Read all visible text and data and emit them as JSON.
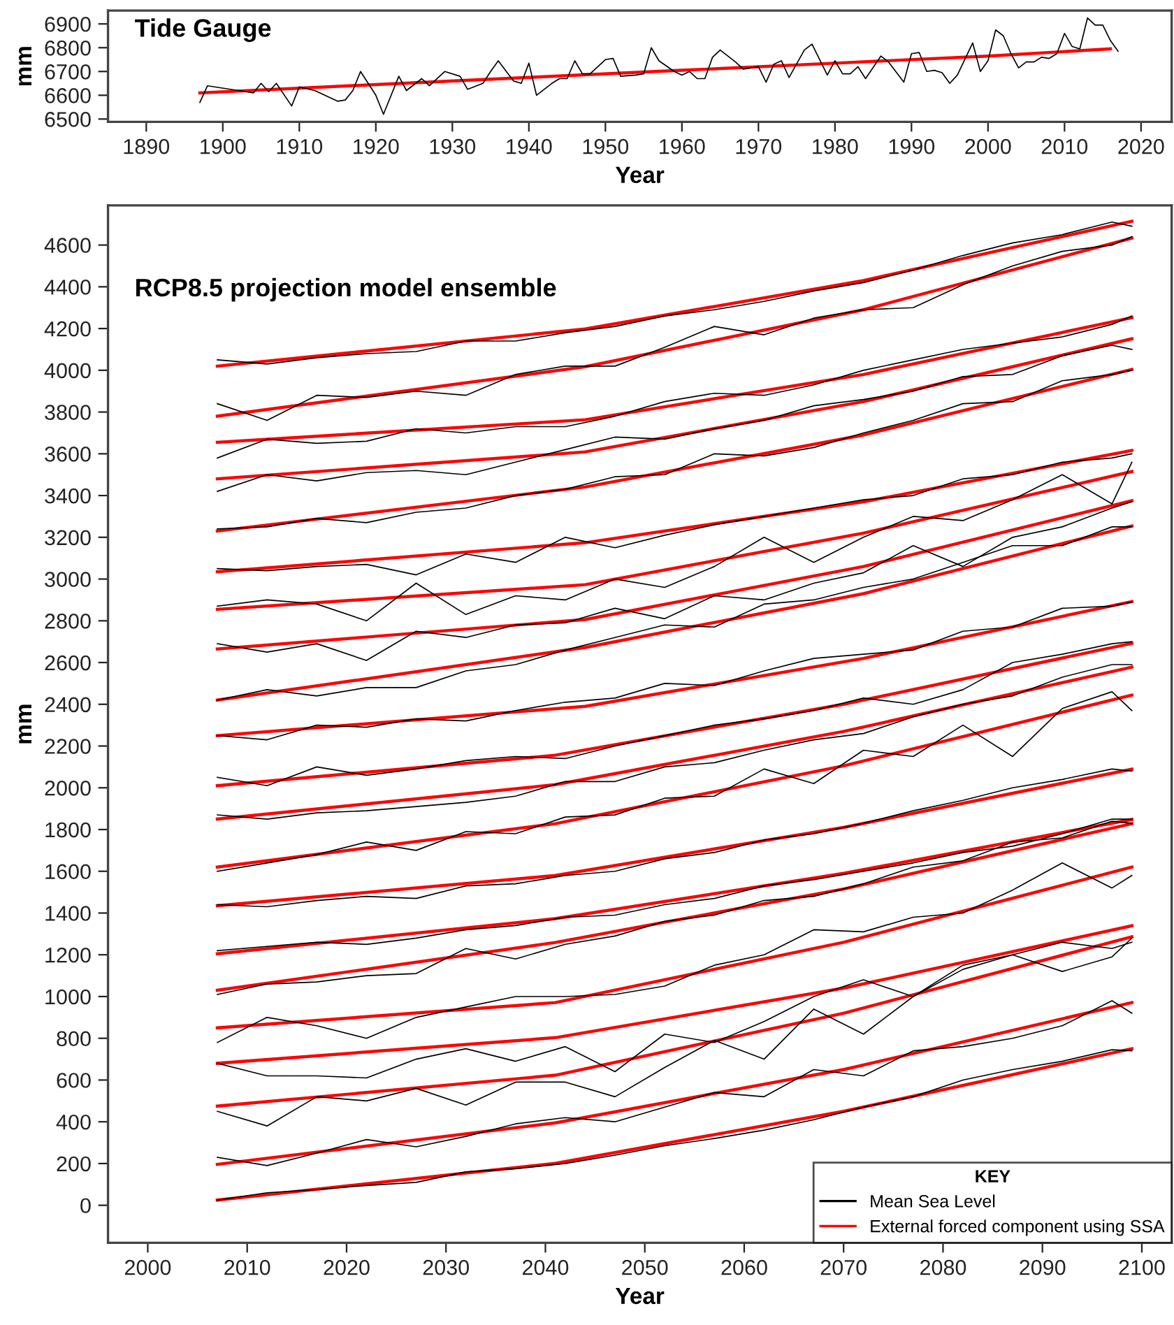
{
  "chart_data": [
    {
      "type": "line",
      "title": "Tide Gauge",
      "xlabel": "Year",
      "ylabel": "mm",
      "xlim": [
        1885,
        2024
      ],
      "ylim": [
        6488,
        6956
      ],
      "xticks": [
        1890,
        1900,
        1910,
        1920,
        1930,
        1940,
        1950,
        1960,
        1970,
        1980,
        1990,
        2000,
        2010,
        2020
      ],
      "yticks": [
        6500,
        6600,
        6700,
        6800,
        6900
      ],
      "grid": false,
      "series": [
        {
          "color": "#000000",
          "x": [
            1897,
            1898,
            1902,
            1904,
            1905,
            1906,
            1907,
            1909,
            1910,
            1912,
            1915,
            1916,
            1917,
            1918,
            1920,
            1921,
            1923,
            1924,
            1926,
            1927,
            1929,
            1931,
            1932,
            1934,
            1935,
            1936,
            1938,
            1939,
            1940,
            1941,
            1943,
            1944,
            1945,
            1946,
            1947,
            1948,
            1950,
            1951,
            1952,
            1954,
            1955,
            1956,
            1957,
            1959,
            1960,
            1961,
            1962,
            1963,
            1964,
            1965,
            1967,
            1968,
            1970,
            1971,
            1972,
            1973,
            1974,
            1976,
            1977,
            1979,
            1980,
            1981,
            1982,
            1983,
            1984,
            1986,
            1987,
            1989,
            1990,
            1991,
            1992,
            1993,
            1994,
            1995,
            1996,
            1998,
            1999,
            2000,
            2001,
            2002,
            2003,
            2004,
            2005,
            2006,
            2007,
            2008,
            2009,
            2010,
            2011,
            2012,
            2013,
            2014,
            2015,
            2016,
            2017
          ],
          "values": [
            6570,
            6640,
            6620,
            6610,
            6650,
            6615,
            6650,
            6555,
            6635,
            6620,
            6575,
            6580,
            6620,
            6700,
            6600,
            6520,
            6680,
            6620,
            6670,
            6640,
            6700,
            6680,
            6625,
            6650,
            6700,
            6745,
            6660,
            6650,
            6735,
            6600,
            6650,
            6670,
            6670,
            6745,
            6690,
            6690,
            6750,
            6755,
            6680,
            6685,
            6690,
            6800,
            6745,
            6700,
            6685,
            6700,
            6670,
            6670,
            6760,
            6790,
            6740,
            6710,
            6720,
            6655,
            6730,
            6745,
            6675,
            6790,
            6815,
            6685,
            6745,
            6690,
            6690,
            6720,
            6670,
            6765,
            6740,
            6655,
            6775,
            6780,
            6700,
            6705,
            6695,
            6650,
            6685,
            6820,
            6700,
            6745,
            6875,
            6850,
            6775,
            6715,
            6740,
            6740,
            6760,
            6755,
            6775,
            6860,
            6805,
            6795,
            6925,
            6895,
            6895,
            6830,
            6785
          ]
        },
        {
          "color": "#ff0000",
          "x": [
            1897,
            1920,
            1940,
            1960,
            1980,
            2000,
            2016
          ],
          "values": [
            6610,
            6645,
            6675,
            6705,
            6735,
            6765,
            6795
          ]
        }
      ]
    },
    {
      "type": "line",
      "title": "RCP8.5 projection model ensemble",
      "xlabel": "Year",
      "ylabel": "mm",
      "xlim": [
        1996,
        2103
      ],
      "ylim": [
        -180,
        4790
      ],
      "xticks": [
        2000,
        2010,
        2020,
        2030,
        2040,
        2050,
        2060,
        2070,
        2080,
        2090,
        2100
      ],
      "yticks": [
        0,
        200,
        400,
        600,
        800,
        1000,
        1200,
        1400,
        1600,
        1800,
        2000,
        2200,
        2400,
        2600,
        2800,
        3000,
        3200,
        3400,
        3600,
        3800,
        4000,
        4200,
        4400,
        4600
      ],
      "grid": false,
      "legend": "bottom right",
      "legend_title": "KEY",
      "x": [
        2007,
        2012,
        2017,
        2022,
        2027,
        2032,
        2037,
        2042,
        2047,
        2052,
        2057,
        2062,
        2067,
        2072,
        2077,
        2082,
        2087,
        2092,
        2097,
        2099
      ],
      "series": [
        {
          "name": "Mean Sea Level",
          "color": "#000000",
          "values": [
            25,
            60,
            75,
            95,
            110,
            160,
            175,
            200,
            240,
            285,
            320,
            360,
            410,
            470,
            520,
            600,
            650,
            690,
            745,
            740
          ]
        },
        {
          "color": "#000000",
          "values": [
            230,
            190,
            250,
            315,
            280,
            330,
            390,
            420,
            400,
            470,
            540,
            520,
            650,
            620,
            740,
            760,
            800,
            860,
            980,
            920
          ]
        },
        {
          "color": "#000000",
          "values": [
            450,
            380,
            520,
            500,
            560,
            480,
            590,
            590,
            520,
            660,
            790,
            700,
            940,
            820,
            1000,
            1130,
            1200,
            1120,
            1190,
            1280
          ]
        },
        {
          "color": "#000000",
          "values": [
            680,
            620,
            620,
            610,
            700,
            750,
            690,
            760,
            640,
            820,
            780,
            880,
            1000,
            1080,
            1000,
            1150,
            1200,
            1260,
            1230,
            1260
          ]
        },
        {
          "color": "#000000",
          "values": [
            780,
            900,
            860,
            800,
            900,
            950,
            1000,
            1000,
            1010,
            1050,
            1150,
            1200,
            1320,
            1310,
            1380,
            1400,
            1510,
            1640,
            1520,
            1580
          ]
        },
        {
          "color": "#000000",
          "values": [
            1010,
            1060,
            1070,
            1100,
            1110,
            1230,
            1180,
            1250,
            1290,
            1360,
            1390,
            1460,
            1480,
            1540,
            1620,
            1650,
            1740,
            1760,
            1840,
            1830
          ]
        },
        {
          "color": "#000000",
          "values": [
            1220,
            1240,
            1260,
            1250,
            1280,
            1320,
            1340,
            1380,
            1390,
            1440,
            1470,
            1530,
            1560,
            1600,
            1640,
            1690,
            1720,
            1780,
            1850,
            1850
          ]
        },
        {
          "color": "#000000",
          "values": [
            1440,
            1430,
            1460,
            1480,
            1470,
            1530,
            1540,
            1580,
            1600,
            1660,
            1690,
            1750,
            1780,
            1830,
            1890,
            1940,
            2000,
            2040,
            2090,
            2080
          ]
        },
        {
          "color": "#000000",
          "values": [
            1600,
            1640,
            1680,
            1740,
            1700,
            1790,
            1780,
            1860,
            1870,
            1950,
            1960,
            2090,
            2020,
            2180,
            2150,
            2300,
            2150,
            2380,
            2460,
            2370
          ]
        },
        {
          "color": "#000000",
          "values": [
            1870,
            1850,
            1880,
            1890,
            1910,
            1930,
            1960,
            2030,
            2030,
            2100,
            2120,
            2180,
            2230,
            2260,
            2340,
            2400,
            2440,
            2530,
            2590,
            2590
          ]
        },
        {
          "color": "#000000",
          "values": [
            2050,
            2010,
            2100,
            2060,
            2090,
            2130,
            2150,
            2140,
            2200,
            2250,
            2300,
            2330,
            2370,
            2430,
            2400,
            2470,
            2600,
            2640,
            2690,
            2700
          ]
        },
        {
          "color": "#000000",
          "values": [
            2250,
            2230,
            2300,
            2290,
            2330,
            2320,
            2370,
            2410,
            2430,
            2500,
            2490,
            2560,
            2620,
            2640,
            2660,
            2750,
            2770,
            2860,
            2870,
            2890
          ]
        },
        {
          "color": "#000000",
          "values": [
            2420,
            2470,
            2440,
            2480,
            2480,
            2560,
            2590,
            2660,
            2720,
            2780,
            2770,
            2880,
            2900,
            2960,
            3000,
            3080,
            3160,
            3160,
            3250,
            3250
          ]
        },
        {
          "color": "#000000",
          "values": [
            2690,
            2650,
            2690,
            2610,
            2750,
            2720,
            2780,
            2790,
            2860,
            2810,
            2920,
            2900,
            2980,
            3030,
            3160,
            3060,
            3200,
            3250,
            3340,
            3370
          ]
        },
        {
          "color": "#000000",
          "values": [
            2870,
            2900,
            2880,
            2800,
            2980,
            2830,
            2920,
            2900,
            3000,
            2960,
            3060,
            3200,
            3080,
            3200,
            3300,
            3280,
            3380,
            3500,
            3360,
            3560
          ]
        },
        {
          "color": "#000000",
          "values": [
            3050,
            3040,
            3060,
            3070,
            3020,
            3120,
            3080,
            3200,
            3150,
            3210,
            3260,
            3300,
            3340,
            3380,
            3400,
            3480,
            3500,
            3560,
            3580,
            3600
          ]
        },
        {
          "color": "#000000",
          "values": [
            3240,
            3250,
            3290,
            3270,
            3320,
            3340,
            3400,
            3430,
            3490,
            3500,
            3600,
            3590,
            3630,
            3700,
            3760,
            3840,
            3850,
            3950,
            3980,
            4000
          ]
        },
        {
          "color": "#000000",
          "values": [
            3420,
            3500,
            3470,
            3510,
            3520,
            3500,
            3560,
            3620,
            3680,
            3670,
            3720,
            3760,
            3830,
            3860,
            3900,
            3970,
            3980,
            4070,
            4120,
            4100
          ]
        },
        {
          "color": "#000000",
          "values": [
            3580,
            3670,
            3650,
            3660,
            3720,
            3700,
            3730,
            3730,
            3780,
            3850,
            3890,
            3880,
            3930,
            4000,
            4050,
            4100,
            4130,
            4160,
            4220,
            4260
          ]
        },
        {
          "color": "#000000",
          "values": [
            3840,
            3760,
            3880,
            3870,
            3900,
            3880,
            3980,
            4020,
            4020,
            4110,
            4210,
            4170,
            4250,
            4290,
            4300,
            4410,
            4500,
            4570,
            4600,
            4640
          ]
        },
        {
          "color": "#000000",
          "values": [
            4050,
            4030,
            4060,
            4080,
            4090,
            4140,
            4140,
            4180,
            4210,
            4260,
            4290,
            4330,
            4380,
            4420,
            4480,
            4550,
            4610,
            4650,
            4710,
            4690
          ]
        },
        {
          "name": "External forced component using SSA",
          "color": "#ff0000",
          "x": [
            2007,
            2041,
            2070,
            2099
          ],
          "values": [
            25,
            201,
            450,
            750
          ]
        },
        {
          "color": "#ff0000",
          "x": [
            2007,
            2041,
            2070,
            2099
          ],
          "values": [
            196,
            395,
            650,
            971
          ]
        },
        {
          "color": "#ff0000",
          "x": [
            2007,
            2041,
            2070,
            2099
          ],
          "values": [
            475,
            623,
            920,
            1286
          ]
        },
        {
          "color": "#ff0000",
          "x": [
            2007,
            2041,
            2070,
            2099
          ],
          "values": [
            680,
            803,
            1040,
            1339
          ]
        },
        {
          "color": "#ff0000",
          "x": [
            2007,
            2041,
            2070,
            2099
          ],
          "values": [
            850,
            971,
            1260,
            1620
          ]
        },
        {
          "color": "#ff0000",
          "x": [
            2007,
            2041,
            2070,
            2099
          ],
          "values": [
            1030,
            1259,
            1515,
            1828
          ]
        },
        {
          "color": "#ff0000",
          "x": [
            2007,
            2041,
            2070,
            2099
          ],
          "values": [
            1205,
            1373,
            1590,
            1848
          ]
        },
        {
          "color": "#ff0000",
          "x": [
            2007,
            2041,
            2070,
            2099
          ],
          "values": [
            1435,
            1580,
            1810,
            2089
          ]
        },
        {
          "color": "#ff0000",
          "x": [
            2007,
            2041,
            2070,
            2099
          ],
          "values": [
            1620,
            1828,
            2105,
            2444
          ]
        },
        {
          "color": "#ff0000",
          "x": [
            2007,
            2041,
            2070,
            2099
          ],
          "values": [
            1850,
            2015,
            2270,
            2578
          ]
        },
        {
          "color": "#ff0000",
          "x": [
            2007,
            2041,
            2070,
            2099
          ],
          "values": [
            2010,
            2156,
            2400,
            2692
          ]
        },
        {
          "color": "#ff0000",
          "x": [
            2007,
            2044,
            2072,
            2099
          ],
          "values": [
            2250,
            2390,
            2620,
            2892
          ]
        },
        {
          "color": "#ff0000",
          "x": [
            2007,
            2044,
            2072,
            2099
          ],
          "values": [
            2420,
            2672,
            2930,
            3254
          ]
        },
        {
          "color": "#ff0000",
          "x": [
            2007,
            2044,
            2072,
            2099
          ],
          "values": [
            2665,
            2806,
            3060,
            3375
          ]
        },
        {
          "color": "#ff0000",
          "x": [
            2007,
            2044,
            2072,
            2099
          ],
          "values": [
            2855,
            2973,
            3220,
            3515
          ]
        },
        {
          "color": "#ff0000",
          "x": [
            2007,
            2044,
            2072,
            2099
          ],
          "values": [
            3035,
            3174,
            3370,
            3616
          ]
        },
        {
          "color": "#ff0000",
          "x": [
            2007,
            2044,
            2072,
            2099
          ],
          "values": [
            3230,
            3441,
            3690,
            4004
          ]
        },
        {
          "color": "#ff0000",
          "x": [
            2007,
            2044,
            2072,
            2099
          ],
          "values": [
            3480,
            3609,
            3850,
            4151
          ]
        },
        {
          "color": "#ff0000",
          "x": [
            2007,
            2044,
            2072,
            2099
          ],
          "values": [
            3655,
            3763,
            3980,
            4252
          ]
        },
        {
          "color": "#ff0000",
          "x": [
            2007,
            2044,
            2072,
            2099
          ],
          "values": [
            3780,
            4017,
            4290,
            4633
          ]
        },
        {
          "color": "#ff0000",
          "x": [
            2007,
            2044,
            2072,
            2099
          ],
          "values": [
            4020,
            4198,
            4430,
            4714
          ]
        }
      ]
    }
  ]
}
